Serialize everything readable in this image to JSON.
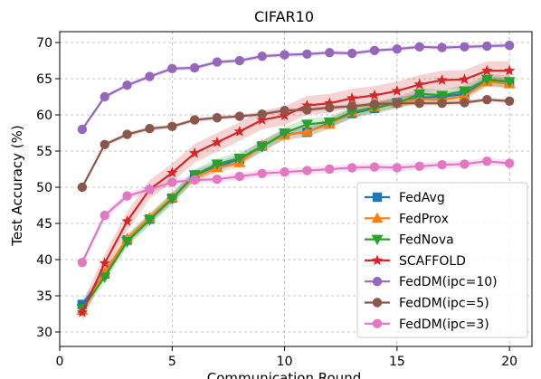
{
  "chart_data": {
    "type": "line",
    "title": "CIFAR10",
    "xlabel": "Communication Round",
    "ylabel": "Test Accuracy (%)",
    "xlim": [
      0,
      21
    ],
    "ylim": [
      28,
      71.5
    ],
    "xticks": [
      0,
      5,
      10,
      15,
      20
    ],
    "yticks": [
      30,
      35,
      40,
      45,
      50,
      55,
      60,
      65,
      70
    ],
    "grid": true,
    "grid_style": "dashed",
    "legend_position": "lower-right",
    "x": [
      1,
      2,
      3,
      4,
      5,
      6,
      7,
      8,
      9,
      10,
      11,
      12,
      13,
      14,
      15,
      16,
      17,
      18,
      19,
      20
    ],
    "series": [
      {
        "name": "FedAvg",
        "color": "#1f77b4",
        "marker": "square",
        "band": 0.7,
        "values": [
          33.8,
          38.0,
          42.7,
          45.6,
          48.5,
          51.7,
          52.8,
          53.9,
          55.7,
          57.3,
          57.6,
          58.9,
          60.2,
          60.9,
          61.7,
          62.4,
          62.5,
          62.9,
          64.7,
          64.4
        ]
      },
      {
        "name": "FedProx",
        "color": "#ff7f0e",
        "marker": "triangle-up",
        "band": 0.7,
        "values": [
          33.0,
          38.2,
          42.9,
          45.8,
          48.6,
          51.4,
          52.7,
          53.4,
          55.8,
          57.2,
          57.7,
          58.7,
          60.4,
          61.1,
          61.7,
          62.2,
          62.1,
          62.6,
          64.6,
          64.3
        ]
      },
      {
        "name": "FedNova",
        "color": "#2ca02c",
        "marker": "triangle-down",
        "band": 0.8,
        "values": [
          33.2,
          37.6,
          42.5,
          45.5,
          48.4,
          51.7,
          53.2,
          54.0,
          55.6,
          57.5,
          58.7,
          59.0,
          60.4,
          61.0,
          61.6,
          62.9,
          62.7,
          63.3,
          64.9,
          64.6
        ]
      },
      {
        "name": "SCAFFOLD",
        "color": "#d62728",
        "marker": "star",
        "band": 1.3,
        "values": [
          32.7,
          39.5,
          45.3,
          49.7,
          52.0,
          54.7,
          56.2,
          57.7,
          59.3,
          59.9,
          61.3,
          61.6,
          62.3,
          62.7,
          63.3,
          64.2,
          64.8,
          64.9,
          66.1,
          66.1
        ]
      },
      {
        "name": "FedDM(ipc=10)",
        "color": "#9467bd",
        "marker": "circle",
        "band": 0.3,
        "values": [
          58.0,
          62.5,
          64.1,
          65.3,
          66.4,
          66.5,
          67.3,
          67.5,
          68.1,
          68.3,
          68.4,
          68.6,
          68.5,
          68.9,
          69.1,
          69.4,
          69.3,
          69.4,
          69.5,
          69.6
        ]
      },
      {
        "name": "FedDM(ipc=5)",
        "color": "#8c564b",
        "marker": "circle",
        "band": 0.3,
        "values": [
          50.0,
          55.9,
          57.3,
          58.1,
          58.4,
          59.3,
          59.6,
          59.8,
          60.1,
          60.6,
          60.7,
          61.0,
          61.2,
          61.5,
          61.6,
          61.6,
          61.6,
          61.7,
          62.1,
          61.9
        ]
      },
      {
        "name": "FedDM(ipc=3)",
        "color": "#e377c2",
        "marker": "circle",
        "band": 0.5,
        "values": [
          39.6,
          46.1,
          48.8,
          49.7,
          50.7,
          51.0,
          51.1,
          51.5,
          51.9,
          52.1,
          52.3,
          52.5,
          52.7,
          52.8,
          52.7,
          52.9,
          53.1,
          53.2,
          53.6,
          53.3
        ]
      }
    ]
  }
}
